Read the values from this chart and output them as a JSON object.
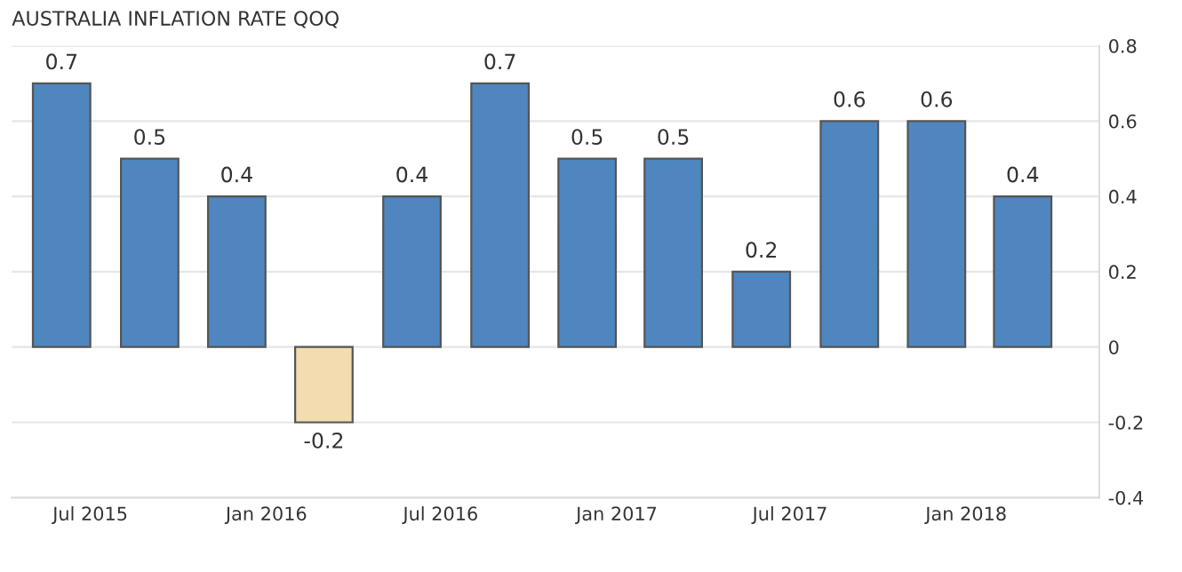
{
  "chart_data": {
    "type": "bar",
    "title": "AUSTRALIA INFLATION RATE QOQ",
    "x": [
      "2015-06-01",
      "2015-09-01",
      "2015-12-01",
      "2016-03-01",
      "2016-06-01",
      "2016-09-01",
      "2016-12-01",
      "2017-03-01",
      "2017-06-01",
      "2017-09-01",
      "2017-12-01",
      "2018-03-01"
    ],
    "values": [
      0.7,
      0.5,
      0.4,
      -0.2,
      0.4,
      0.7,
      0.5,
      0.5,
      0.2,
      0.6,
      0.6,
      0.4
    ],
    "colors": [
      "#4f86bf",
      "#4f86bf",
      "#4f86bf",
      "#f2dcb0",
      "#4f86bf",
      "#4f86bf",
      "#4f86bf",
      "#4f86bf",
      "#4f86bf",
      "#4f86bf",
      "#4f86bf",
      "#4f86bf"
    ],
    "data_labels": true,
    "xlim": [
      "2015-04-10",
      "2018-05-20"
    ],
    "xticks": [
      {
        "value": "2015-07-01",
        "label": "Jul 2015"
      },
      {
        "value": "2016-01-01",
        "label": "Jan 2016"
      },
      {
        "value": "2016-07-01",
        "label": "Jul 2016"
      },
      {
        "value": "2017-01-01",
        "label": "Jan 2017"
      },
      {
        "value": "2017-07-01",
        "label": "Jul 2017"
      },
      {
        "value": "2018-01-01",
        "label": "Jan 2018"
      }
    ],
    "ylim": [
      -0.4,
      0.8
    ],
    "yticks": [
      -0.4,
      -0.2,
      0,
      0.2,
      0.4,
      0.6,
      0.8
    ],
    "grid": "y"
  }
}
